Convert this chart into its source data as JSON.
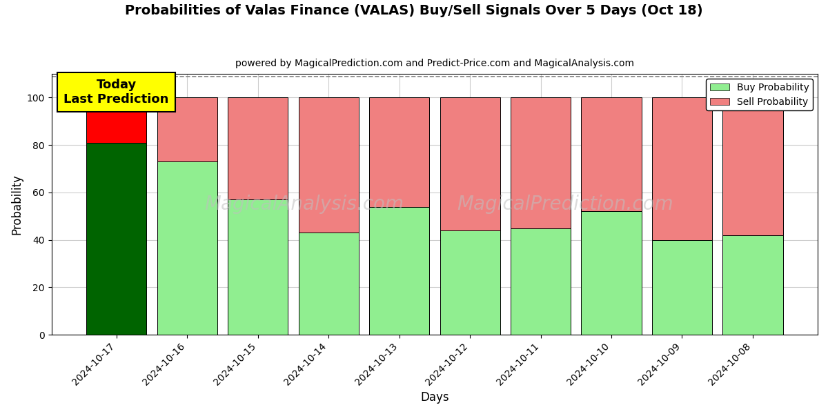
{
  "title": "Probabilities of Valas Finance (VALAS) Buy/Sell Signals Over 5 Days (Oct 18)",
  "subtitle": "powered by MagicalPrediction.com and Predict-Price.com and MagicalAnalysis.com",
  "xlabel": "Days",
  "ylabel": "Probability",
  "dates": [
    "2024-10-17",
    "2024-10-16",
    "2024-10-15",
    "2024-10-14",
    "2024-10-13",
    "2024-10-12",
    "2024-10-11",
    "2024-10-10",
    "2024-10-09",
    "2024-10-08"
  ],
  "buy_values": [
    81,
    73,
    57,
    43,
    54,
    44,
    45,
    52,
    40,
    42
  ],
  "sell_values": [
    19,
    27,
    43,
    57,
    46,
    56,
    55,
    48,
    60,
    58
  ],
  "today_buy_color": "#006400",
  "today_sell_color": "#FF0000",
  "buy_color_light": "#90EE90",
  "sell_color_light": "#F08080",
  "today_annotation_bg": "#FFFF00",
  "today_annotation_text": "Today\nLast Prediction",
  "ylim": [
    0,
    110
  ],
  "yticks": [
    0,
    20,
    40,
    60,
    80,
    100
  ],
  "dashed_line_y": 109,
  "watermark_left": "MagicalAnalysis.com",
  "watermark_right": "MagicalPrediction.com",
  "background_color": "#ffffff",
  "grid_color": "#cccccc",
  "bar_width": 0.85,
  "legend_label_buy": "Buy Probability",
  "legend_label_sell": "Sell Probability"
}
